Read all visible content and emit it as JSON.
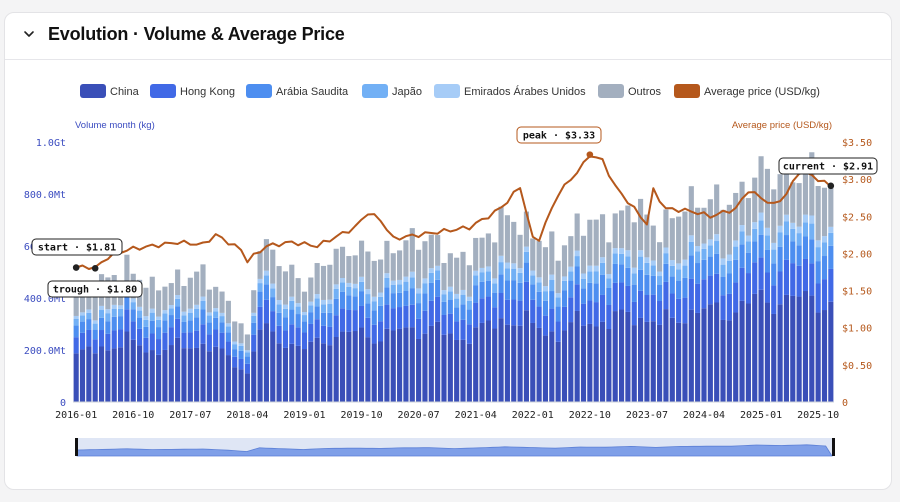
{
  "header": {
    "title": "Evolution · Volume & Average Price",
    "collapse_icon": "chevron-down-icon"
  },
  "legend": [
    {
      "label": "China",
      "color": "#3a4fb8"
    },
    {
      "label": "Hong Kong",
      "color": "#4169e6"
    },
    {
      "label": "Arábia Saudita",
      "color": "#4d8ef0"
    },
    {
      "label": "Japão",
      "color": "#72b0f5"
    },
    {
      "label": "Emirados Árabes Unidos",
      "color": "#a6ccf7"
    },
    {
      "label": "Outros",
      "color": "#a3afbf"
    },
    {
      "label": "Average price (USD/kg)",
      "color": "#b5581c"
    }
  ],
  "chart_data": {
    "type": "bar",
    "stacked": true,
    "y_left": {
      "label": "Volume month (kg)",
      "ticks": [
        "0",
        "200.0Mt",
        "400.0Mt",
        "600.0Mt",
        "800.0Mt",
        "1.0Gt"
      ],
      "range": [
        0,
        1000
      ]
    },
    "y_right": {
      "label": "Average price (USD/kg)",
      "ticks": [
        "0",
        "$0.50",
        "$1.00",
        "$1.50",
        "$2.00",
        "$2.50",
        "$3.00",
        "$3.50"
      ],
      "range": [
        0,
        3.5
      ]
    },
    "x_ticks": [
      "2016-01",
      "2016-10",
      "2017-07",
      "2018-04",
      "2019-01",
      "2019-10",
      "2020-07",
      "2021-04",
      "2022-01",
      "2022-10",
      "2023-07",
      "2024-04",
      "2025-01",
      "2025-10"
    ],
    "series_names": [
      "China",
      "Hong Kong",
      "Arábia Saudita",
      "Japão",
      "Emirados Árabes Unidos",
      "Outros"
    ],
    "total_anchors_Mt": [
      [
        0,
        400
      ],
      [
        4,
        460
      ],
      [
        8,
        520
      ],
      [
        12,
        440
      ],
      [
        16,
        470
      ],
      [
        20,
        500
      ],
      [
        24,
        380
      ],
      [
        27,
        250
      ],
      [
        29,
        620
      ],
      [
        33,
        520
      ],
      [
        36,
        450
      ],
      [
        40,
        560
      ],
      [
        44,
        590
      ],
      [
        48,
        560
      ],
      [
        52,
        620
      ],
      [
        56,
        630
      ],
      [
        60,
        540
      ],
      [
        64,
        620
      ],
      [
        68,
        720
      ],
      [
        72,
        650
      ],
      [
        76,
        580
      ],
      [
        80,
        700
      ],
      [
        84,
        680
      ],
      [
        88,
        760
      ],
      [
        92,
        660
      ],
      [
        96,
        760
      ],
      [
        100,
        780
      ],
      [
        104,
        780
      ],
      [
        108,
        900
      ],
      [
        112,
        850
      ],
      [
        116,
        920
      ],
      [
        119,
        800
      ]
    ],
    "share_fractions": [
      0.45,
      0.14,
      0.1,
      0.06,
      0.03
    ],
    "price_anchors": [
      [
        0,
        1.81
      ],
      [
        2,
        1.82
      ],
      [
        3,
        1.8
      ],
      [
        5,
        1.95
      ],
      [
        8,
        2.05
      ],
      [
        12,
        2.1
      ],
      [
        16,
        2.15
      ],
      [
        20,
        2.12
      ],
      [
        22,
        2.25
      ],
      [
        26,
        2.05
      ],
      [
        27,
        1.9
      ],
      [
        30,
        2.1
      ],
      [
        34,
        2.15
      ],
      [
        38,
        2.1
      ],
      [
        44,
        2.35
      ],
      [
        46,
        2.55
      ],
      [
        48,
        2.45
      ],
      [
        50,
        2.2
      ],
      [
        54,
        2.25
      ],
      [
        58,
        2.3
      ],
      [
        62,
        2.35
      ],
      [
        66,
        2.55
      ],
      [
        68,
        2.7
      ],
      [
        70,
        2.9
      ],
      [
        72,
        2.2
      ],
      [
        73,
        2.2
      ],
      [
        76,
        2.8
      ],
      [
        78,
        3.0
      ],
      [
        80,
        3.2
      ],
      [
        81,
        3.33
      ],
      [
        83,
        3.25
      ],
      [
        85,
        2.9
      ],
      [
        88,
        2.6
      ],
      [
        90,
        2.4
      ],
      [
        91,
        2.85
      ],
      [
        93,
        2.6
      ],
      [
        96,
        2.58
      ],
      [
        98,
        2.55
      ],
      [
        100,
        2.5
      ],
      [
        102,
        2.55
      ],
      [
        104,
        2.6
      ],
      [
        106,
        2.85
      ],
      [
        108,
        2.75
      ],
      [
        110,
        2.65
      ],
      [
        112,
        2.8
      ],
      [
        114,
        3.1
      ],
      [
        116,
        3.05
      ],
      [
        118,
        2.95
      ],
      [
        119,
        2.91
      ]
    ],
    "annotations": [
      {
        "label": "start · $1.81",
        "index": 0,
        "value": 1.81
      },
      {
        "label": "trough · $1.80",
        "index": 3,
        "value": 1.8
      },
      {
        "label": "peak · $3.33",
        "index": 81,
        "value": 3.33
      },
      {
        "label": "current · $2.91",
        "index": 119,
        "value": 2.91
      }
    ],
    "months": 120
  }
}
